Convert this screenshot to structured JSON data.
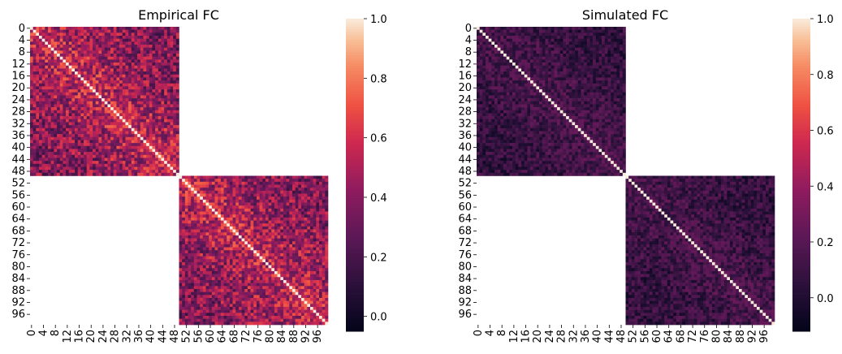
{
  "chart_data": [
    {
      "type": "heatmap",
      "title": "Empirical FC",
      "n_regions": 100,
      "blocks": [
        [
          0,
          49
        ],
        [
          50,
          99
        ]
      ],
      "off_block_value": null,
      "diagonal_value": 1.0,
      "within_block_mean": 0.35,
      "within_block_range": [
        0.15,
        0.75
      ],
      "x_ticks": [
        "0",
        "4",
        "8",
        "12",
        "16",
        "20",
        "24",
        "28",
        "32",
        "36",
        "40",
        "44",
        "48",
        "52",
        "56",
        "60",
        "64",
        "68",
        "72",
        "76",
        "80",
        "84",
        "88",
        "92",
        "96"
      ],
      "y_ticks": [
        "0",
        "4",
        "8",
        "12",
        "16",
        "20",
        "24",
        "28",
        "32",
        "36",
        "40",
        "44",
        "48",
        "52",
        "56",
        "60",
        "64",
        "68",
        "72",
        "76",
        "80",
        "84",
        "88",
        "92",
        "96"
      ],
      "colorbar": {
        "min": -0.05,
        "max": 1.0,
        "ticks": [
          "1.0",
          "0.8",
          "0.6",
          "0.4",
          "0.2",
          "0.0"
        ],
        "tick_values": [
          1.0,
          0.8,
          0.6,
          0.4,
          0.2,
          0.0
        ]
      },
      "colormap": "rocket"
    },
    {
      "type": "heatmap",
      "title": "Simulated FC",
      "n_regions": 100,
      "blocks": [
        [
          0,
          49
        ],
        [
          50,
          99
        ]
      ],
      "off_block_value": null,
      "diagonal_value": 1.0,
      "within_block_mean": 0.05,
      "within_block_range": [
        -0.1,
        0.25
      ],
      "x_ticks": [
        "0",
        "4",
        "8",
        "12",
        "16",
        "20",
        "24",
        "28",
        "32",
        "36",
        "40",
        "44",
        "48",
        "52",
        "56",
        "60",
        "64",
        "68",
        "72",
        "76",
        "80",
        "84",
        "88",
        "92",
        "96"
      ],
      "y_ticks": [
        "0",
        "4",
        "8",
        "12",
        "16",
        "20",
        "24",
        "28",
        "32",
        "36",
        "40",
        "44",
        "48",
        "52",
        "56",
        "60",
        "64",
        "68",
        "72",
        "76",
        "80",
        "84",
        "88",
        "92",
        "96"
      ],
      "colorbar": {
        "min": -0.12,
        "max": 1.0,
        "ticks": [
          "1.0",
          "0.8",
          "0.6",
          "0.4",
          "0.2",
          "0.0"
        ],
        "tick_values": [
          1.0,
          0.8,
          0.6,
          0.4,
          0.2,
          0.0
        ]
      },
      "colormap": "rocket"
    }
  ]
}
